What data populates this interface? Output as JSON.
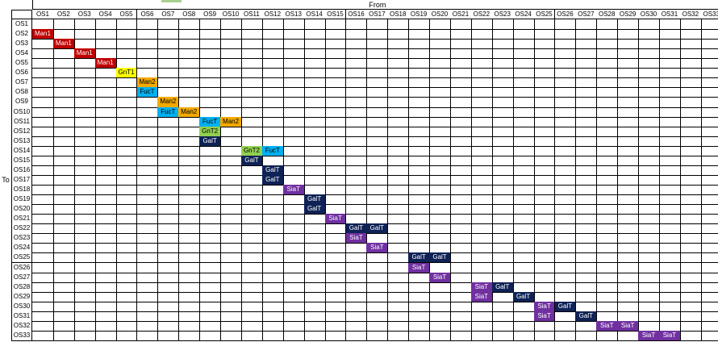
{
  "axis_labels": {
    "from": "From",
    "to": "To"
  },
  "column_headers": [
    "OS1",
    "OS2",
    "OS3",
    "OS4",
    "OS5",
    "OS6",
    "OS7",
    "OS8",
    "OS9",
    "OS10",
    "OS11",
    "OS12",
    "OS13",
    "OS14",
    "OS15",
    "OS16",
    "OS17",
    "OS18",
    "OS19",
    "OS20",
    "OS21",
    "OS22",
    "OS23",
    "OS24",
    "OS25",
    "OS26",
    "OS27",
    "OS28",
    "OS29",
    "OS30",
    "OS31",
    "OS32",
    "OS33"
  ],
  "row_headers": [
    "OS1",
    "OS2",
    "OS3",
    "OS4",
    "OS5",
    "OS6",
    "OS7",
    "OS8",
    "OS9",
    "OS10",
    "OS11",
    "OS12",
    "OS13",
    "OS14",
    "OS15",
    "OS16",
    "OS17",
    "OS18",
    "OS19",
    "OS20",
    "OS21",
    "OS22",
    "OS23",
    "OS24",
    "OS25",
    "OS26",
    "OS27",
    "OS28",
    "OS29",
    "OS30",
    "OS31",
    "OS32",
    "OS33"
  ],
  "enzyme_colors": {
    "Man1": "#c00000",
    "Man2": "#f2a900",
    "GnT1": "#ffff00",
    "GnT2": "#92d050",
    "FucT": "#00b0f0",
    "GalT": "#0f2256",
    "SiaT": "#7030a0"
  },
  "entries": [
    {
      "to": "OS2",
      "from": "OS1",
      "label": "Man1"
    },
    {
      "to": "OS3",
      "from": "OS2",
      "label": "Man1"
    },
    {
      "to": "OS4",
      "from": "OS3",
      "label": "Man1"
    },
    {
      "to": "OS5",
      "from": "OS4",
      "label": "Man1"
    },
    {
      "to": "OS6",
      "from": "OS5",
      "label": "GnT1"
    },
    {
      "to": "OS7",
      "from": "OS6",
      "label": "Man2"
    },
    {
      "to": "OS8",
      "from": "OS6",
      "label": "FucT"
    },
    {
      "to": "OS9",
      "from": "OS7",
      "label": "Man2"
    },
    {
      "to": "OS10",
      "from": "OS7",
      "label": "FucT"
    },
    {
      "to": "OS10",
      "from": "OS8",
      "label": "Man2"
    },
    {
      "to": "OS11",
      "from": "OS9",
      "label": "FucT"
    },
    {
      "to": "OS11",
      "from": "OS10",
      "label": "Man2"
    },
    {
      "to": "OS12",
      "from": "OS9",
      "label": "GnT2"
    },
    {
      "to": "OS13",
      "from": "OS9",
      "label": "GalT"
    },
    {
      "to": "OS14",
      "from": "OS11",
      "label": "GnT2"
    },
    {
      "to": "OS14",
      "from": "OS12",
      "label": "FucT"
    },
    {
      "to": "OS15",
      "from": "OS11",
      "label": "GalT"
    },
    {
      "to": "OS16",
      "from": "OS12",
      "label": "GalT"
    },
    {
      "to": "OS17",
      "from": "OS12",
      "label": "GalT"
    },
    {
      "to": "OS18",
      "from": "OS13",
      "label": "SiaT"
    },
    {
      "to": "OS19",
      "from": "OS14",
      "label": "GalT"
    },
    {
      "to": "OS20",
      "from": "OS14",
      "label": "GalT"
    },
    {
      "to": "OS21",
      "from": "OS15",
      "label": "SiaT"
    },
    {
      "to": "OS22",
      "from": "OS16",
      "label": "GalT"
    },
    {
      "to": "OS22",
      "from": "OS17",
      "label": "GalT"
    },
    {
      "to": "OS23",
      "from": "OS16",
      "label": "SiaT"
    },
    {
      "to": "OS24",
      "from": "OS17",
      "label": "SiaT"
    },
    {
      "to": "OS25",
      "from": "OS19",
      "label": "GalT"
    },
    {
      "to": "OS25",
      "from": "OS20",
      "label": "GalT"
    },
    {
      "to": "OS26",
      "from": "OS19",
      "label": "SiaT"
    },
    {
      "to": "OS27",
      "from": "OS20",
      "label": "SiaT"
    },
    {
      "to": "OS28",
      "from": "OS22",
      "label": "SiaT"
    },
    {
      "to": "OS28",
      "from": "OS23",
      "label": "GalT"
    },
    {
      "to": "OS29",
      "from": "OS22",
      "label": "SiaT"
    },
    {
      "to": "OS29",
      "from": "OS24",
      "label": "GalT"
    },
    {
      "to": "OS30",
      "from": "OS25",
      "label": "SiaT"
    },
    {
      "to": "OS30",
      "from": "OS26",
      "label": "GalT"
    },
    {
      "to": "OS31",
      "from": "OS25",
      "label": "SiaT"
    },
    {
      "to": "OS31",
      "from": "OS27",
      "label": "GalT"
    },
    {
      "to": "OS32",
      "from": "OS28",
      "label": "SiaT"
    },
    {
      "to": "OS32",
      "from": "OS29",
      "label": "SiaT"
    },
    {
      "to": "OS33",
      "from": "OS30",
      "label": "SiaT"
    },
    {
      "to": "OS33",
      "from": "OS31",
      "label": "SiaT"
    }
  ]
}
